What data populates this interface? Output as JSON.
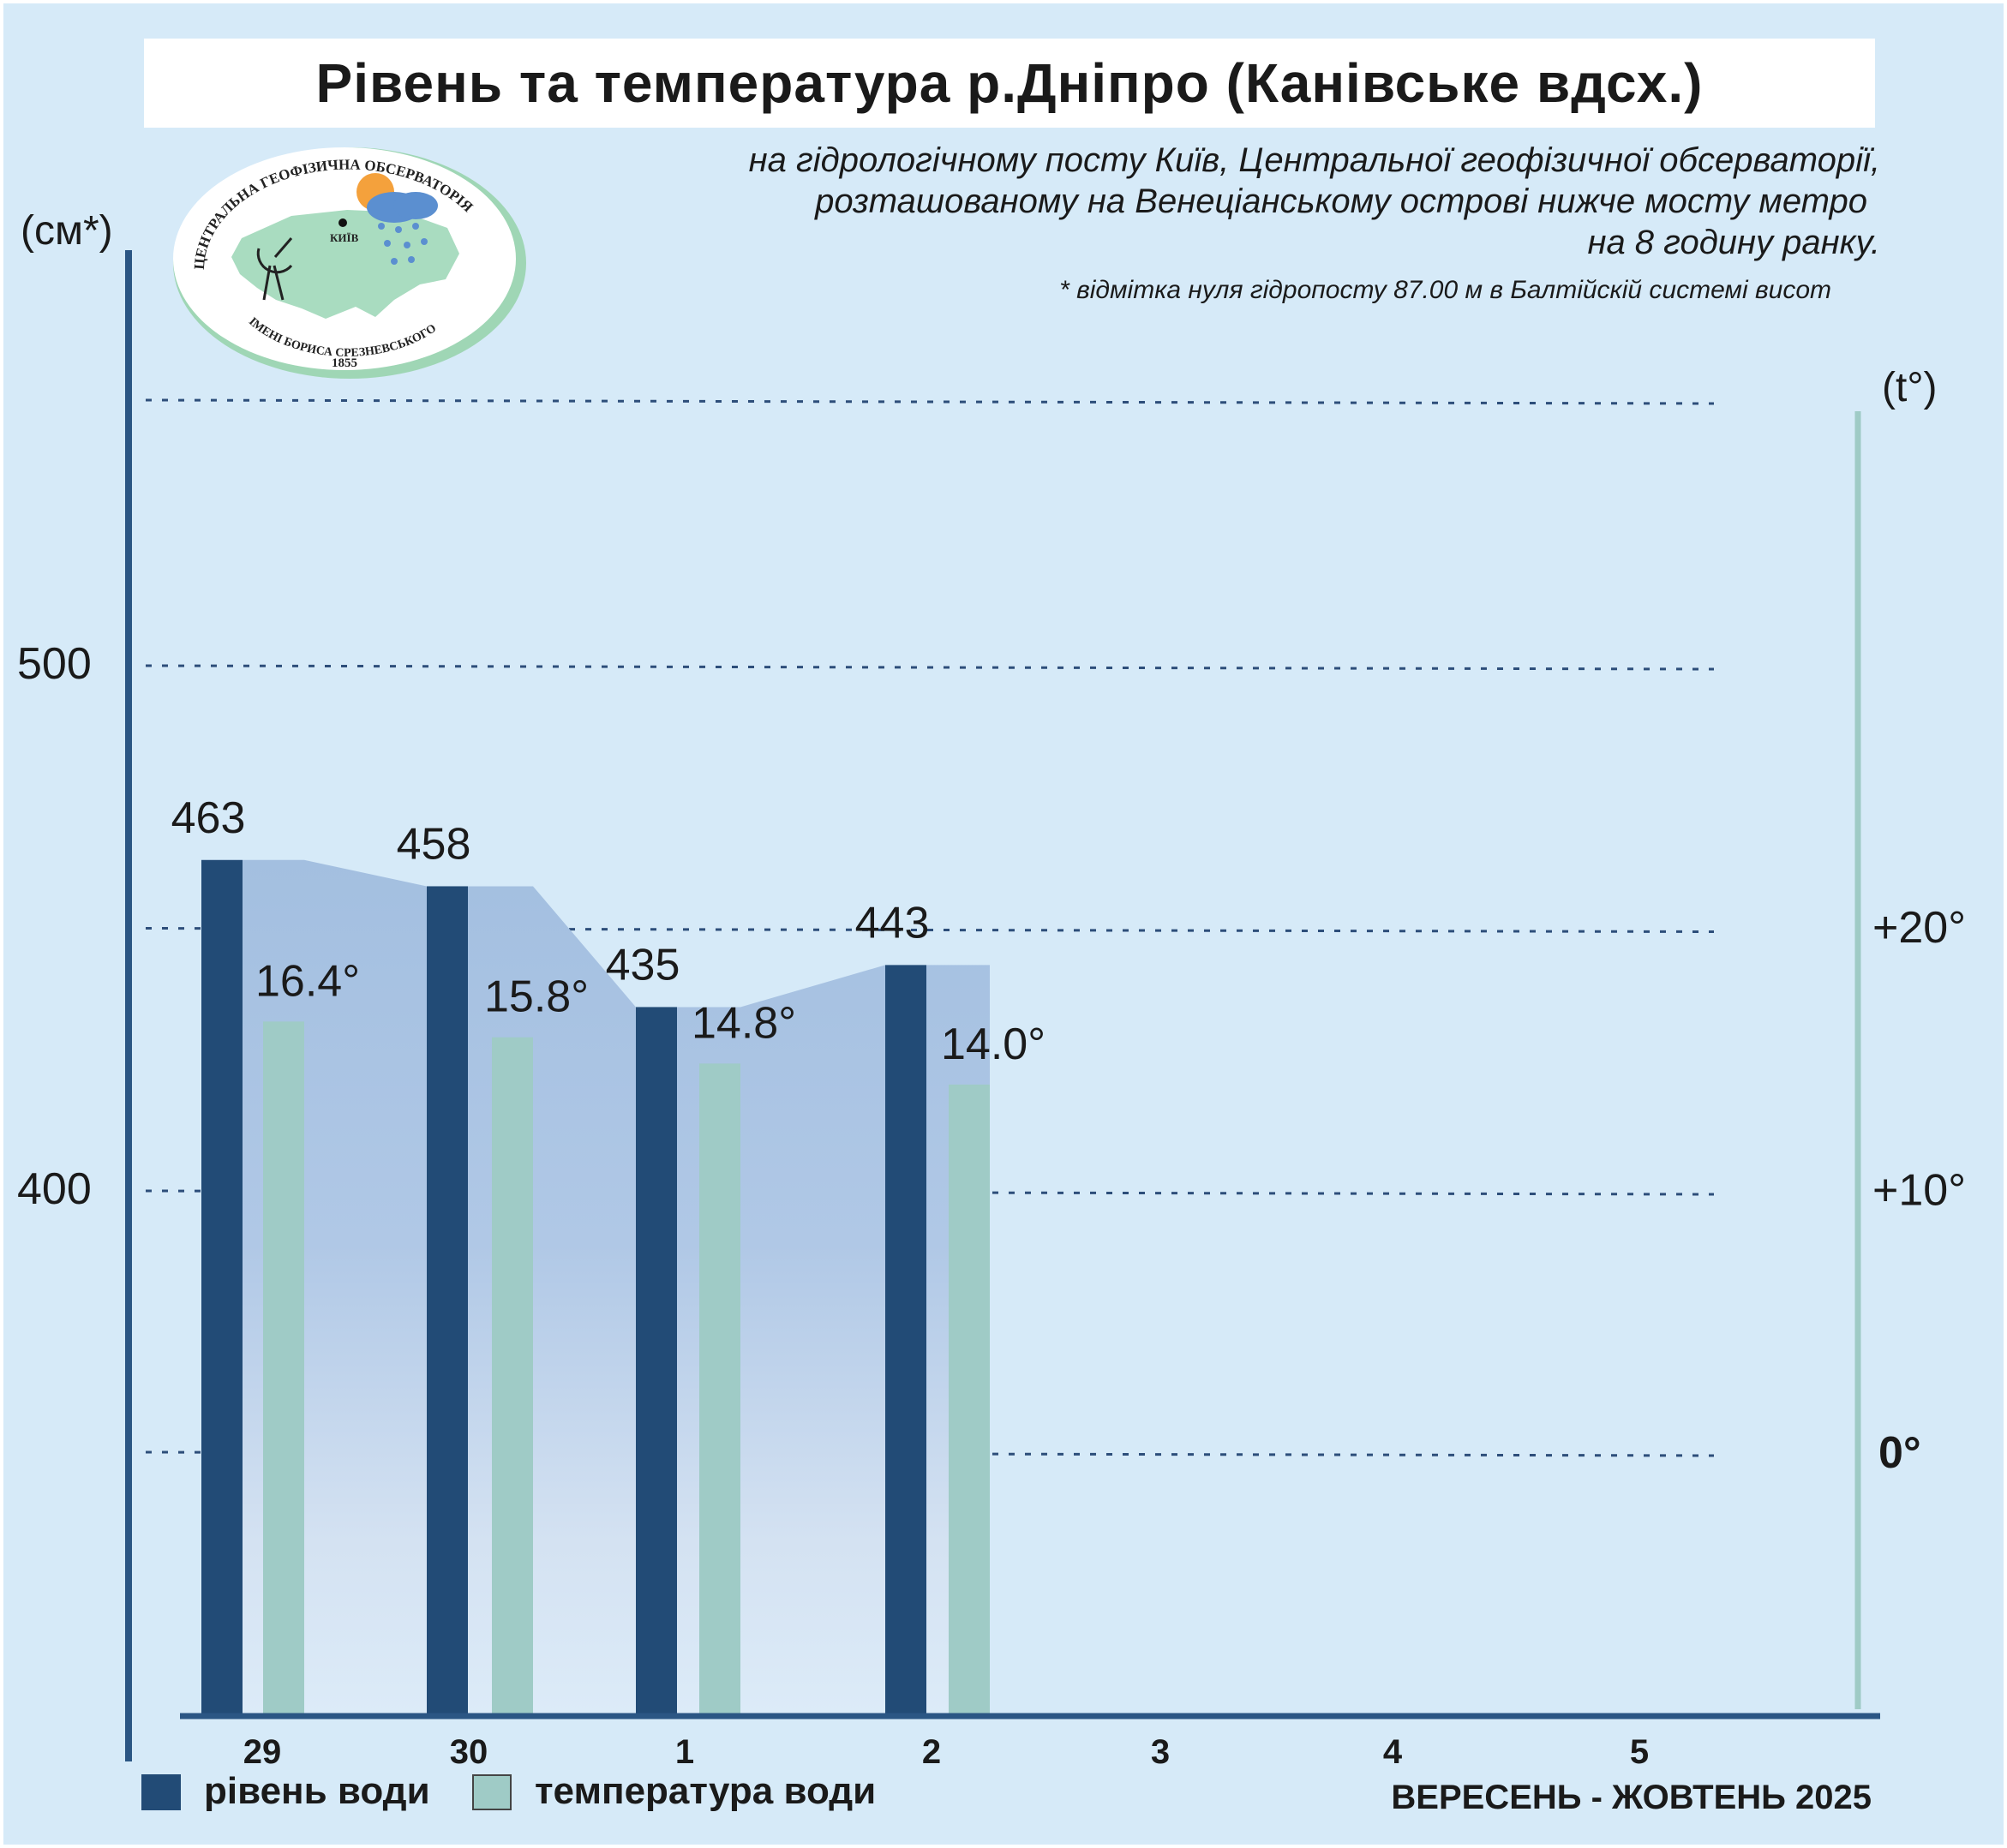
{
  "header": {
    "title": "Рівень та температура р.Дніпро (Канівське вдсх.)",
    "subtitle_lines": [
      "на гідрологічному посту Київ, Центральної геофізичної обсерваторії,",
      "розташованому на Венеціанському острові нижче мосту метро",
      "на 8 годину ранку."
    ],
    "footnote": "* відмітка нуля гідропосту 87.00 м в Балтійскій системі висот"
  },
  "logo": {
    "top_text": "ЦЕНТРАЛЬНА ГЕОФІЗИЧНА ОБСЕРВАТОРІЯ",
    "bottom_text": "ІМЕНІ БОРИСА СРЕЗНЕВСЬКОГО",
    "year": "1855",
    "city": "КИЇВ"
  },
  "legend": {
    "level_label": "рівень води",
    "temperature_label": "температура води"
  },
  "period_label": "ВЕРЕСЕНЬ - ЖОВТЕНЬ 2025",
  "colors": {
    "background": "#d6eaf8",
    "level_bar": "#224b76",
    "temperature_bar": "#9fcbc6",
    "area_fill": "#a3bfe0",
    "gridline": "#2d4e7a",
    "axis": "#2b5684"
  },
  "chart_data": {
    "type": "bar",
    "categories": [
      "29",
      "30",
      "1",
      "2",
      "3",
      "4",
      "5"
    ],
    "left_axis": {
      "label": "(см*)",
      "ticks": [
        {
          "value": 400,
          "label": "400"
        },
        {
          "value": 500,
          "label": "500"
        }
      ]
    },
    "right_axis": {
      "label": "(t°)",
      "ticks": [
        {
          "value": 0,
          "label": "0°"
        },
        {
          "value": 10,
          "label": "+10°"
        },
        {
          "value": 20,
          "label": "+20°"
        }
      ]
    },
    "grid": true,
    "series": [
      {
        "name": "рівень води",
        "axis": "left",
        "values": [
          463,
          458,
          435,
          443,
          null,
          null,
          null
        ],
        "labels": [
          "463",
          "458",
          "435",
          "443",
          "",
          "",
          ""
        ]
      },
      {
        "name": "температура води",
        "axis": "right",
        "values": [
          16.4,
          15.8,
          14.8,
          14.0,
          null,
          null,
          null
        ],
        "labels": [
          "16.4°",
          "15.8°",
          "14.8°",
          "14.0°",
          "",
          "",
          ""
        ]
      }
    ],
    "legend_position": "bottom-left"
  }
}
